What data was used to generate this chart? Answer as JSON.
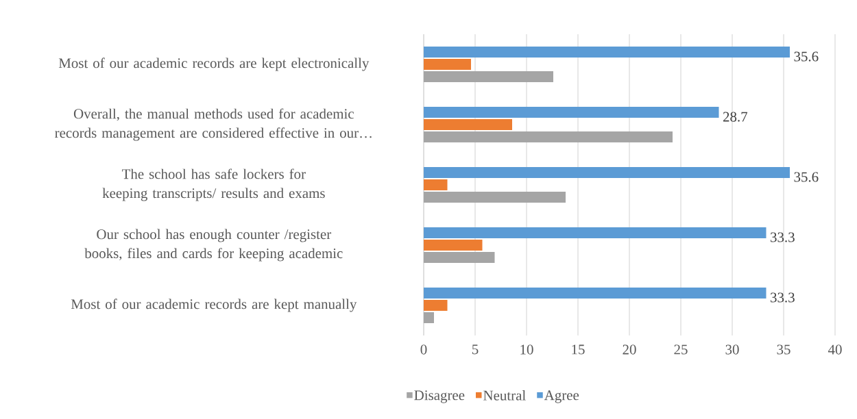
{
  "chart_data": {
    "type": "bar",
    "orientation": "horizontal",
    "categories": [
      "Most of our academic records are kept electronically",
      "Overall, the manual methods used for academic records management are considered effective in our…",
      "The school has safe lockers for keeping transcripts/ results and exams",
      "Our school has enough counter /register books, files and cards for keeping academic",
      "Most of our academic records are kept manually"
    ],
    "series": [
      {
        "name": "Disagree",
        "color": "#a5a5a5",
        "values": [
          12.6,
          24.2,
          13.8,
          6.9,
          1.0
        ]
      },
      {
        "name": "Neutral",
        "color": "#ed7d31",
        "values": [
          4.6,
          8.6,
          2.3,
          5.7,
          2.3
        ]
      },
      {
        "name": "Agree",
        "color": "#5b9bd5",
        "values": [
          35.6,
          28.7,
          35.6,
          33.3,
          33.3
        ],
        "value_labels": [
          "35.6",
          "28.7",
          "35.6",
          "33.3",
          "33.3"
        ]
      }
    ],
    "xlim": [
      0,
      40
    ],
    "xticks": [
      0,
      5,
      10,
      15,
      20,
      25,
      30,
      35,
      40
    ],
    "grid": "x",
    "legend": "bottom"
  }
}
